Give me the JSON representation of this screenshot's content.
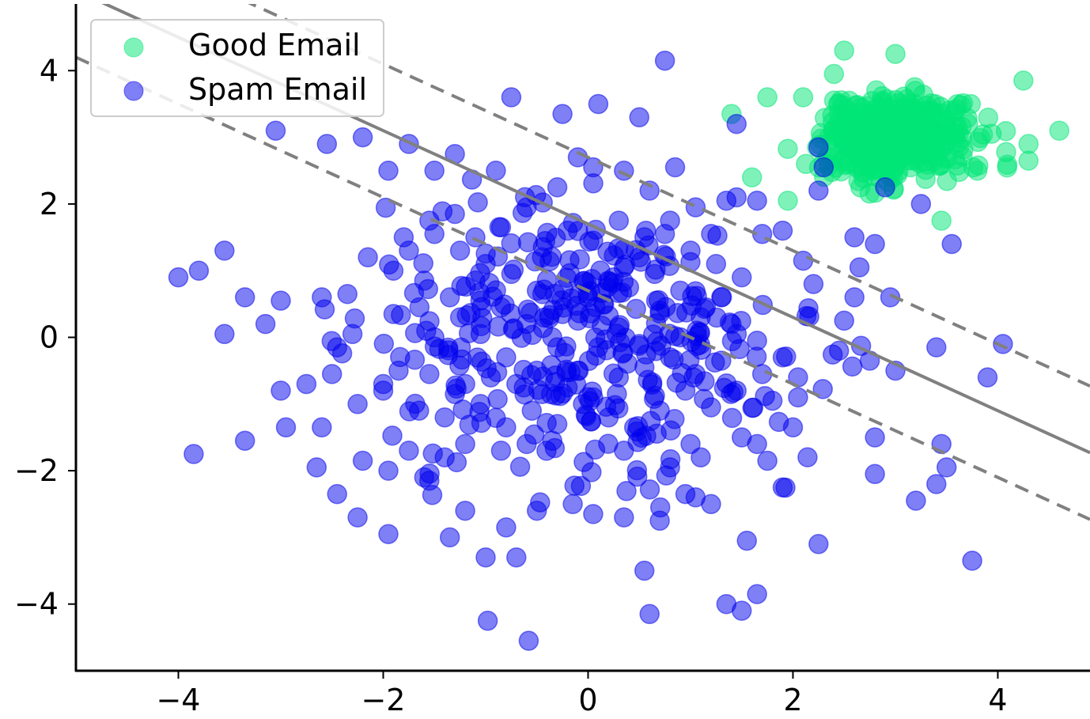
{
  "chart_data": {
    "type": "scatter",
    "title": "",
    "xlabel": "",
    "ylabel": "",
    "xlim": [
      -5,
      4.9
    ],
    "ylim": [
      -5,
      5
    ],
    "xticks": [
      -4,
      -2,
      0,
      2,
      4
    ],
    "xtick_labels": [
      "−4",
      "−2",
      "0",
      "2",
      "4"
    ],
    "yticks": [
      -4,
      -2,
      0,
      2,
      4
    ],
    "ytick_labels": [
      "−4",
      "−2",
      "0",
      "2",
      "4"
    ],
    "grid": false,
    "legend": {
      "placement": "top-left",
      "entries": [
        "Good Email",
        "Spam Email"
      ]
    },
    "decision_boundary": {
      "line": "y = 1.7 - 0.7 x",
      "slope": -0.7,
      "intercept": 1.7,
      "margin_intercepts": [
        0.7,
        2.7
      ],
      "color": "#808080"
    },
    "series": [
      {
        "name": "Good Email",
        "color": "#00e676",
        "alpha": 0.5,
        "cluster_center": [
          3,
          3
        ],
        "cluster_spread": 0.35,
        "count": 500,
        "points": [
          [
            4.25,
            3.85
          ],
          [
            4.6,
            3.1
          ],
          [
            4.3,
            2.9
          ],
          [
            4.3,
            2.65
          ],
          [
            3.8,
            2.5
          ],
          [
            1.6,
            2.4
          ],
          [
            1.95,
            2.05
          ],
          [
            3.45,
            1.75
          ],
          [
            2.4,
            3.95
          ],
          [
            2.1,
            3.6
          ],
          [
            1.75,
            3.6
          ],
          [
            1.4,
            3.35
          ],
          [
            2.5,
            4.3
          ],
          [
            3.0,
            4.25
          ]
        ]
      },
      {
        "name": "Spam Email",
        "color": "#0000ee",
        "alpha": 0.5,
        "count": 500,
        "points": [
          [
            -4.0,
            0.9
          ],
          [
            -3.8,
            1.0
          ],
          [
            -3.55,
            1.3
          ],
          [
            -3.85,
            -1.75
          ],
          [
            -3.05,
            3.1
          ],
          [
            -2.55,
            2.9
          ],
          [
            -2.2,
            3.0
          ],
          [
            -1.75,
            2.9
          ],
          [
            -1.3,
            2.75
          ],
          [
            -0.75,
            3.6
          ],
          [
            -0.25,
            3.35
          ],
          [
            0.1,
            3.5
          ],
          [
            0.5,
            3.3
          ],
          [
            0.75,
            4.15
          ],
          [
            1.45,
            3.2
          ],
          [
            -0.9,
            2.5
          ],
          [
            -1.5,
            2.5
          ],
          [
            -1.95,
            2.5
          ],
          [
            -2.15,
            1.2
          ],
          [
            -1.9,
            1.0
          ],
          [
            -2.35,
            0.65
          ],
          [
            -2.6,
            0.6
          ],
          [
            -3.0,
            0.55
          ],
          [
            -3.35,
            0.6
          ],
          [
            -3.15,
            0.2
          ],
          [
            -3.55,
            0.05
          ],
          [
            -2.3,
            0.05
          ],
          [
            -1.9,
            0.35
          ],
          [
            -2.0,
            -0.8
          ],
          [
            -2.25,
            -1.0
          ],
          [
            -2.6,
            -1.35
          ],
          [
            -2.95,
            -1.35
          ],
          [
            -3.35,
            -1.55
          ],
          [
            -3.0,
            -0.8
          ],
          [
            -2.65,
            -1.95
          ],
          [
            -2.2,
            -1.85
          ],
          [
            -1.95,
            -2.0
          ],
          [
            -2.45,
            -2.35
          ],
          [
            -2.25,
            -2.7
          ],
          [
            -1.95,
            -2.95
          ],
          [
            -1.6,
            -2.1
          ],
          [
            -1.35,
            -3.0
          ],
          [
            -1.2,
            -2.6
          ],
          [
            -1.0,
            -3.3
          ],
          [
            -0.8,
            -2.85
          ],
          [
            -0.7,
            -3.3
          ],
          [
            -0.98,
            -4.25
          ],
          [
            -0.58,
            -4.55
          ],
          [
            -0.5,
            -2.6
          ],
          [
            -0.15,
            -2.5
          ],
          [
            0.05,
            -2.65
          ],
          [
            0.35,
            -2.7
          ],
          [
            0.55,
            -3.5
          ],
          [
            0.6,
            -4.15
          ],
          [
            0.7,
            -2.75
          ],
          [
            1.05,
            -2.4
          ],
          [
            1.2,
            -2.5
          ],
          [
            1.55,
            -3.05
          ],
          [
            1.65,
            -3.85
          ],
          [
            1.5,
            -4.1
          ],
          [
            1.35,
            -4.0
          ],
          [
            2.25,
            -3.1
          ],
          [
            1.9,
            -2.25
          ],
          [
            1.75,
            -1.85
          ],
          [
            3.2,
            -2.45
          ],
          [
            3.4,
            -2.2
          ],
          [
            3.5,
            -1.95
          ],
          [
            3.45,
            -1.6
          ],
          [
            3.75,
            -3.35
          ],
          [
            2.8,
            -2.05
          ],
          [
            2.8,
            -1.5
          ],
          [
            3.0,
            -0.5
          ],
          [
            2.75,
            -0.35
          ],
          [
            2.45,
            -0.2
          ],
          [
            3.4,
            -0.15
          ],
          [
            4.05,
            -0.1
          ],
          [
            3.9,
            -0.6
          ],
          [
            2.5,
            0.25
          ],
          [
            2.6,
            0.6
          ],
          [
            2.95,
            0.6
          ],
          [
            2.65,
            1.05
          ],
          [
            2.8,
            1.4
          ],
          [
            2.6,
            1.5
          ],
          [
            3.55,
            1.4
          ],
          [
            2.2,
            0.8
          ],
          [
            2.1,
            1.15
          ],
          [
            1.9,
            1.6
          ],
          [
            1.7,
            1.55
          ],
          [
            1.35,
            2.05
          ],
          [
            1.45,
            2.1
          ],
          [
            1.65,
            2.05
          ],
          [
            2.25,
            2.2
          ],
          [
            2.3,
            2.55
          ],
          [
            2.25,
            2.85
          ],
          [
            2.9,
            2.25
          ],
          [
            3.25,
            2.0
          ],
          [
            2.0,
            -1.35
          ],
          [
            2.05,
            -0.6
          ],
          [
            2.05,
            -0.9
          ],
          [
            1.8,
            -0.95
          ],
          [
            1.5,
            -1.5
          ],
          [
            1.65,
            -1.6
          ],
          [
            1.0,
            -1.6
          ],
          [
            1.1,
            -1.8
          ],
          [
            0.95,
            -2.35
          ],
          [
            0.8,
            -1.95
          ],
          [
            0.35,
            -1.7
          ],
          [
            -0.35,
            -1.55
          ],
          [
            -0.6,
            -1.6
          ],
          [
            -0.85,
            -1.7
          ],
          [
            -1.2,
            -1.6
          ],
          [
            -1.4,
            -1.8
          ],
          [
            -1.55,
            -2.15
          ],
          [
            -1.75,
            -1.7
          ],
          [
            -1.65,
            -1.1
          ],
          [
            -1.4,
            -1.2
          ],
          [
            -1.2,
            -0.7
          ],
          [
            -1.55,
            -0.55
          ],
          [
            -1.85,
            -0.5
          ],
          [
            -2.0,
            -0.7
          ],
          [
            -2.45,
            -0.15
          ],
          [
            -2.5,
            -0.55
          ],
          [
            -2.75,
            -0.7
          ],
          [
            -1.5,
            0.0
          ],
          [
            -1.25,
            0.3
          ],
          [
            -1.05,
            0.05
          ],
          [
            -0.8,
            -0.3
          ],
          [
            -0.5,
            -0.5
          ],
          [
            -0.3,
            -0.15
          ],
          [
            -0.1,
            -0.5
          ],
          [
            0.1,
            -0.15
          ],
          [
            0.3,
            0.15
          ],
          [
            0.5,
            -0.1
          ],
          [
            0.7,
            0.4
          ],
          [
            0.9,
            0.0
          ],
          [
            1.1,
            0.3
          ],
          [
            1.3,
            0.6
          ],
          [
            1.5,
            0.9
          ],
          [
            1.25,
            1.1
          ],
          [
            1.0,
            1.3
          ],
          [
            0.75,
            1.55
          ],
          [
            0.5,
            1.2
          ],
          [
            0.25,
            0.9
          ],
          [
            0.0,
            0.6
          ],
          [
            -0.25,
            0.35
          ],
          [
            -0.5,
            0.7
          ],
          [
            -0.75,
            0.95
          ],
          [
            -1.0,
            1.1
          ],
          [
            -1.25,
            1.3
          ],
          [
            -1.5,
            1.55
          ],
          [
            -1.75,
            1.3
          ],
          [
            -1.6,
            0.85
          ],
          [
            -1.35,
            0.6
          ],
          [
            -1.1,
            0.85
          ],
          [
            -0.85,
            0.45
          ],
          [
            -0.6,
            0.2
          ],
          [
            -0.35,
            0.0
          ],
          [
            -0.1,
            0.25
          ],
          [
            0.15,
            0.5
          ],
          [
            0.4,
            0.75
          ],
          [
            0.65,
            0.95
          ],
          [
            0.9,
            0.7
          ],
          [
            1.15,
            0.45
          ],
          [
            1.4,
            0.2
          ],
          [
            1.65,
            -0.05
          ],
          [
            1.9,
            -0.3
          ],
          [
            1.7,
            -0.55
          ],
          [
            1.45,
            -0.8
          ],
          [
            1.2,
            -1.05
          ],
          [
            0.95,
            -0.8
          ],
          [
            0.7,
            -1.1
          ],
          [
            0.45,
            -1.35
          ],
          [
            0.2,
            -1.2
          ],
          [
            -0.05,
            -1.0
          ],
          [
            -0.3,
            -1.3
          ],
          [
            -0.55,
            -1.1
          ],
          [
            -0.8,
            -1.35
          ],
          [
            -1.05,
            -1.0
          ],
          [
            -1.3,
            -0.85
          ],
          [
            -0.95,
            -0.6
          ],
          [
            -0.7,
            -0.7
          ],
          [
            -0.45,
            -0.85
          ],
          [
            -0.2,
            -0.75
          ],
          [
            0.05,
            -0.9
          ],
          [
            0.3,
            -0.6
          ],
          [
            0.55,
            -0.45
          ],
          [
            0.8,
            -0.3
          ],
          [
            1.05,
            -0.55
          ],
          [
            1.3,
            -0.35
          ],
          [
            0.6,
            2.2
          ],
          [
            0.85,
            2.55
          ],
          [
            0.35,
            2.5
          ],
          [
            0.05,
            2.55
          ],
          [
            -0.1,
            2.7
          ],
          [
            -0.3,
            2.25
          ],
          [
            -0.6,
            1.95
          ],
          [
            -0.85,
            1.65
          ],
          [
            -1.1,
            1.5
          ],
          [
            -1.3,
            1.85
          ],
          [
            -1.55,
            1.75
          ],
          [
            -1.8,
            1.5
          ],
          [
            -0.45,
            1.2
          ],
          [
            -0.2,
            1.6
          ],
          [
            0.05,
            1.45
          ],
          [
            0.3,
            1.75
          ],
          [
            0.55,
            1.5
          ],
          [
            0.8,
            1.75
          ],
          [
            1.05,
            1.95
          ],
          [
            1.2,
            1.55
          ]
        ]
      }
    ]
  }
}
